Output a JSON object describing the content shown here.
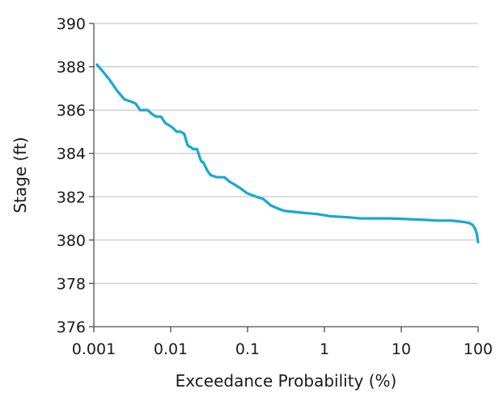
{
  "chart_data": {
    "type": "line",
    "x_scale": "log",
    "xlabel": "Exceedance Probability  (%)",
    "ylabel": "Stage  (ft)",
    "xlim": [
      0.001,
      100
    ],
    "ylim": [
      376,
      390
    ],
    "x_ticks": [
      0.001,
      0.01,
      0.1,
      1,
      10,
      100
    ],
    "x_tick_labels": [
      "0.001",
      "0.01",
      "0.1",
      "1",
      "10",
      "100"
    ],
    "y_ticks": [
      376,
      378,
      380,
      382,
      384,
      386,
      388,
      390
    ],
    "y_tick_labels": [
      "376",
      "378",
      "380",
      "382",
      "384",
      "386",
      "388",
      "390"
    ],
    "grid": true,
    "series": [
      {
        "color": "#17a9cf",
        "x": [
          0.0011,
          0.0013,
          0.0016,
          0.002,
          0.0025,
          0.003,
          0.0035,
          0.004,
          0.005,
          0.0058,
          0.0065,
          0.0075,
          0.0085,
          0.0095,
          0.0105,
          0.012,
          0.0135,
          0.015,
          0.0165,
          0.0175,
          0.0182,
          0.0195,
          0.022,
          0.0245,
          0.0255,
          0.0265,
          0.03,
          0.033,
          0.036,
          0.04,
          0.05,
          0.058,
          0.065,
          0.08,
          0.1,
          0.13,
          0.16,
          0.2,
          0.25,
          0.3,
          0.4,
          0.55,
          0.8,
          1.2,
          2,
          3,
          5,
          7,
          10,
          15,
          20,
          30,
          45,
          60,
          75,
          85,
          92,
          96,
          100
        ],
        "y": [
          388.1,
          387.8,
          387.4,
          386.9,
          386.5,
          386.4,
          386.3,
          386.0,
          386.0,
          385.8,
          385.7,
          385.7,
          385.4,
          385.3,
          385.2,
          385.0,
          385.0,
          384.9,
          384.4,
          384.3,
          384.3,
          384.2,
          384.2,
          383.7,
          383.6,
          383.6,
          383.2,
          383.0,
          382.95,
          382.9,
          382.9,
          382.7,
          382.6,
          382.4,
          382.15,
          382.0,
          381.9,
          381.6,
          381.45,
          381.35,
          381.3,
          381.25,
          381.2,
          381.1,
          381.05,
          381.0,
          381.0,
          381.0,
          380.98,
          380.95,
          380.93,
          380.9,
          380.9,
          380.85,
          380.8,
          380.7,
          380.5,
          380.3,
          379.9
        ]
      }
    ]
  }
}
